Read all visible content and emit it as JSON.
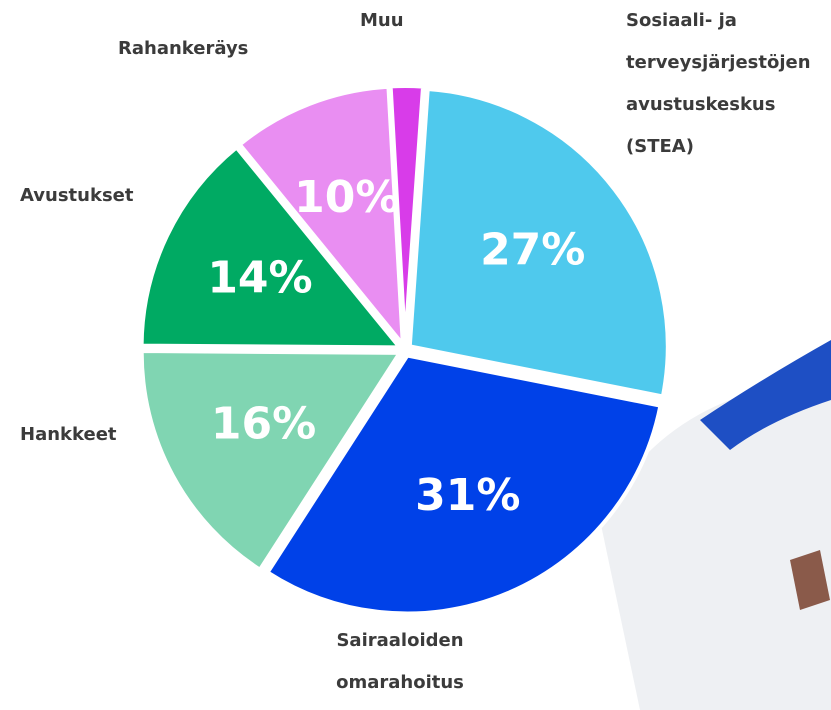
{
  "chart_data": {
    "type": "pie",
    "categories": [
      "Sosiaali- ja terveysjärjestöjen avustuskeskus (STEA)",
      "Sairaaloiden omarahoitus",
      "Hankkeet",
      "Avustukset",
      "Rahankeräys",
      "Muu"
    ],
    "values": [
      27,
      31,
      16,
      14,
      10,
      2
    ],
    "value_labels": [
      "27%",
      "31%",
      "16%",
      "14%",
      "10%",
      null
    ],
    "colors": [
      "#4fc9ed",
      "#0041e8",
      "#80d5b2",
      "#00aa63",
      "#e98ef2",
      "#d83ce9"
    ]
  }
}
